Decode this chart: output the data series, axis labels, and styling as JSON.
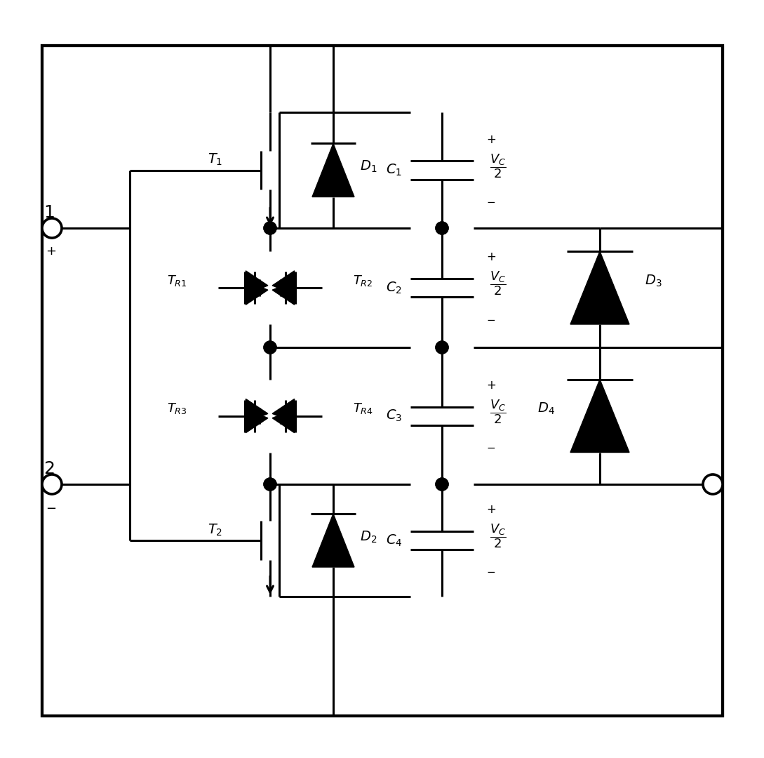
{
  "bg_color": "#ffffff",
  "line_color": "#000000",
  "lw": 2.2,
  "fig_width": 10.89,
  "fig_height": 10.8
}
